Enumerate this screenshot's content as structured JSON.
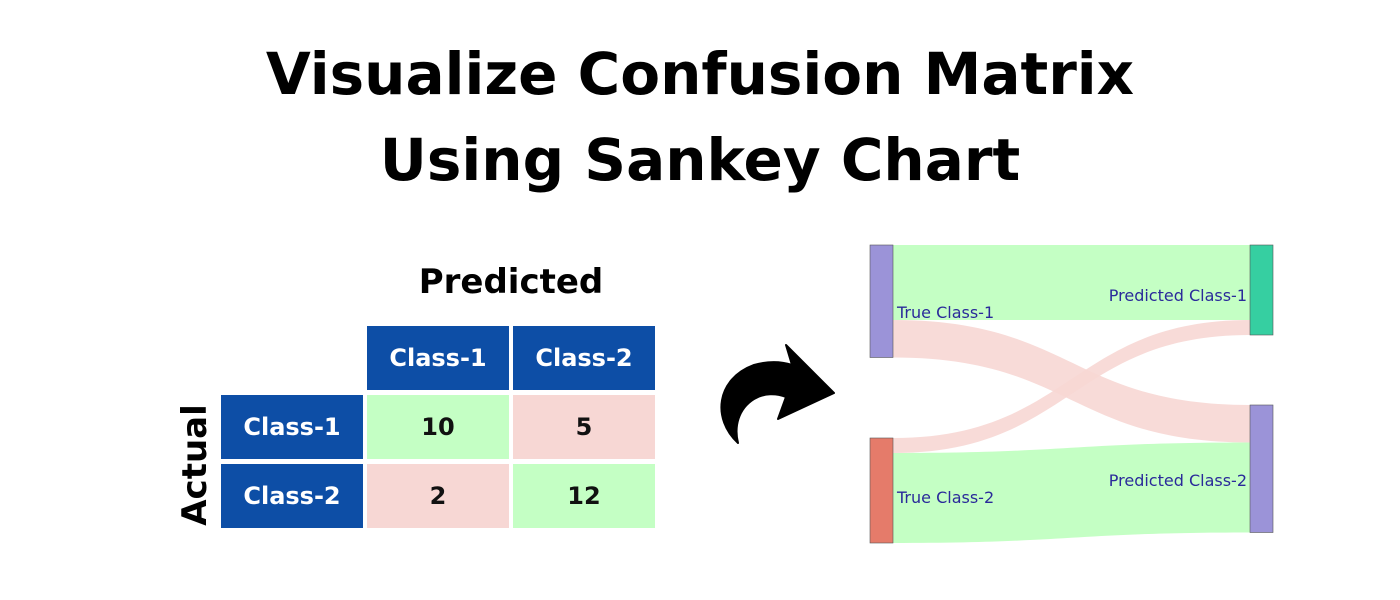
{
  "title": {
    "line1": "Visualize Confusion Matrix",
    "line2": "Using Sankey Chart"
  },
  "confusion_matrix": {
    "predicted_label": "Predicted",
    "actual_label": "Actual",
    "columns": [
      "Class-1",
      "Class-2"
    ],
    "rows": [
      "Class-1",
      "Class-2"
    ],
    "values": [
      [
        10,
        5
      ],
      [
        2,
        12
      ]
    ],
    "colors": {
      "header": "#0d4ea6",
      "correct": "#c4ffc4",
      "incorrect": "#f7d7d4"
    }
  },
  "arrow": {
    "icon": "curved-arrow-right-icon",
    "color": "#000000"
  },
  "sankey": {
    "source_nodes": [
      "True Class-1",
      "True Class-2"
    ],
    "target_nodes": [
      "Predicted Class-1",
      "Predicted Class-2"
    ],
    "links": [
      {
        "source": 0,
        "target": 0,
        "value": 10
      },
      {
        "source": 0,
        "target": 1,
        "value": 5
      },
      {
        "source": 1,
        "target": 0,
        "value": 2
      },
      {
        "source": 1,
        "target": 1,
        "value": 12
      }
    ],
    "colors": {
      "correct_link": "#c4ffc4",
      "incorrect_link": "#f7d7d4",
      "true_class_1": "#9b93d8",
      "true_class_2": "#e57b6a",
      "predicted_class_1": "#36cfa1",
      "predicted_class_2": "#9b93d8",
      "label": "#2a2a9a"
    }
  }
}
